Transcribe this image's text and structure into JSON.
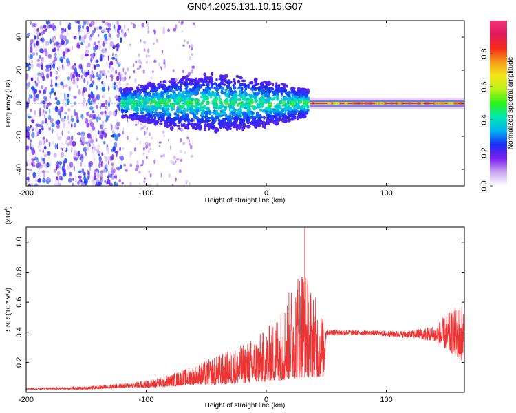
{
  "chart_data": [
    {
      "type": "heatmap",
      "title": "GN04.2025.131.10.15.G07",
      "xlabel": "Height of straight line (km)",
      "ylabel": "Frequency (Hz)",
      "xlim": [
        -200,
        165
      ],
      "ylim": [
        -50,
        50
      ],
      "xticks": [
        "-200",
        "-100",
        "0",
        "100"
      ],
      "yticks": [
        "-40",
        "-20",
        "0",
        "20",
        "40"
      ],
      "colorbar": {
        "label": "Normalized spectral amplitude",
        "range": [
          0,
          1
        ],
        "ticks": [
          "0.0",
          "0.2",
          "0.4",
          "0.6",
          "0.8"
        ],
        "colors": [
          "#ffffff",
          "#c9a8f2",
          "#7a1df0",
          "#1a2cf5",
          "#00b4f0",
          "#00e8b0",
          "#2cf21a",
          "#b8f21a",
          "#f5e61a",
          "#f59c1a",
          "#f52a1a",
          "#e01a5a",
          "#f03278"
        ]
      },
      "regions": [
        {
          "x_range": [
            -200,
            -120
          ],
          "f_range": [
            -50,
            50
          ],
          "amplitude": [
            0.0,
            0.3
          ],
          "description": "noise"
        },
        {
          "x_range": [
            -120,
            35
          ],
          "f_center": 0,
          "f_halfwidth": [
            8,
            18
          ],
          "amplitude": [
            0.2,
            0.55
          ]
        },
        {
          "x_range": [
            36,
            165
          ],
          "f_center": 0,
          "f_halfwidth": 2.5,
          "amplitude": [
            0.6,
            1.0
          ]
        }
      ],
      "grid": false,
      "grid_note": "dashed zero line at Frequency = 0"
    },
    {
      "type": "line",
      "xlabel": "Height of straight line (km)",
      "ylabel": "SNR (10 * v/v)",
      "y_exponent": "(x10",
      "y_exponent_power": "4",
      "y_exponent_close": ")",
      "xlim": [
        -200,
        165
      ],
      "ylim": [
        0,
        1.1
      ],
      "xticks": [
        "-200",
        "-100",
        "0",
        "100"
      ],
      "yticks": [
        "0.2",
        "0.4",
        "0.6",
        "0.8",
        "1.0"
      ],
      "series": [
        {
          "color": "#ee3333",
          "envelope": [
            {
              "x": -200,
              "low": 0.02,
              "high": 0.03
            },
            {
              "x": -150,
              "low": 0.02,
              "high": 0.04
            },
            {
              "x": -120,
              "low": 0.03,
              "high": 0.06
            },
            {
              "x": -100,
              "low": 0.03,
              "high": 0.08
            },
            {
              "x": -80,
              "low": 0.04,
              "high": 0.12
            },
            {
              "x": -60,
              "low": 0.05,
              "high": 0.18
            },
            {
              "x": -40,
              "low": 0.05,
              "high": 0.25
            },
            {
              "x": -20,
              "low": 0.06,
              "high": 0.32
            },
            {
              "x": 0,
              "low": 0.07,
              "high": 0.42
            },
            {
              "x": 15,
              "low": 0.08,
              "high": 0.6
            },
            {
              "x": 30,
              "low": 0.1,
              "high": 0.9
            },
            {
              "x": 38,
              "low": 0.1,
              "high": 0.7
            },
            {
              "x": 48,
              "low": 0.1,
              "high": 0.5
            },
            {
              "x": 50,
              "low": 0.38,
              "high": 0.42
            },
            {
              "x": 90,
              "low": 0.38,
              "high": 0.41
            },
            {
              "x": 100,
              "low": 0.37,
              "high": 0.41
            },
            {
              "x": 120,
              "low": 0.36,
              "high": 0.41
            },
            {
              "x": 140,
              "low": 0.34,
              "high": 0.45
            },
            {
              "x": 165,
              "low": 0.2,
              "high": 0.62
            }
          ],
          "peak": {
            "x": 32,
            "y": 1.1
          }
        }
      ],
      "grid": false
    }
  ]
}
